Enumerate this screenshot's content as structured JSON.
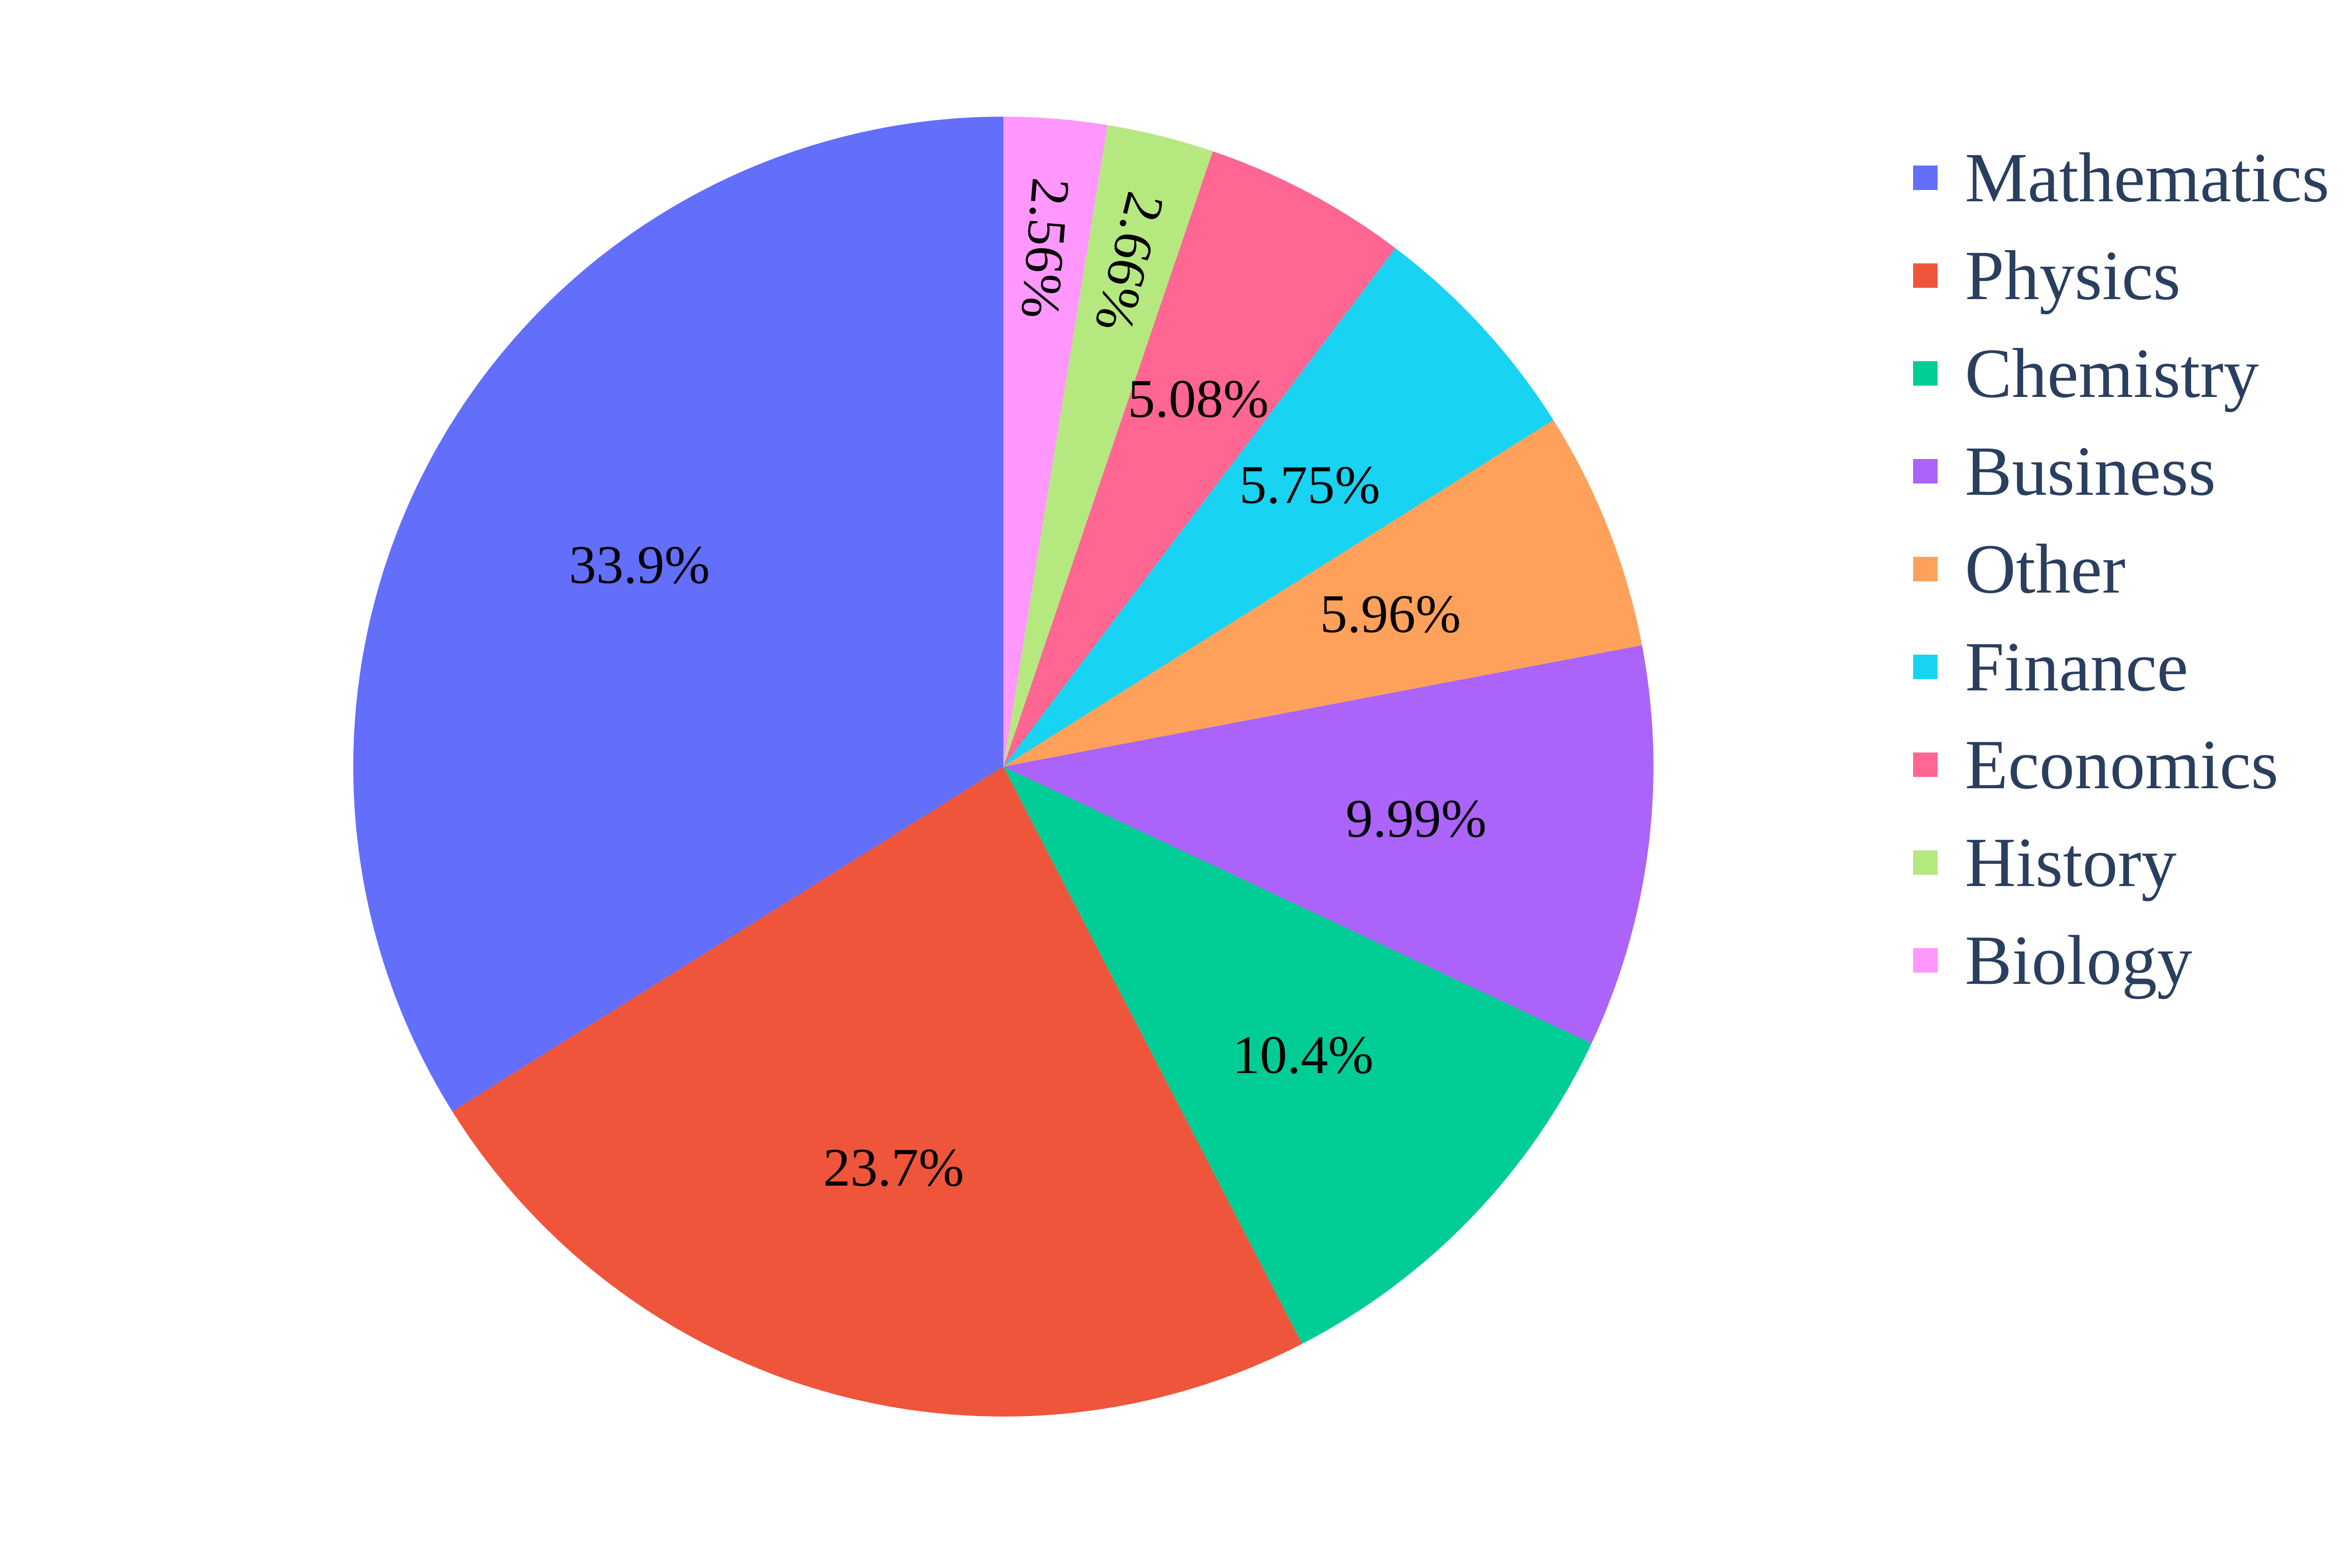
{
  "chart_data": {
    "type": "pie",
    "categories": [
      "Mathematics",
      "Physics",
      "Chemistry",
      "Business",
      "Other",
      "Finance",
      "Economics",
      "History",
      "Biology"
    ],
    "values": [
      33.9,
      23.7,
      10.4,
      9.99,
      5.96,
      5.75,
      5.08,
      2.66,
      2.56
    ],
    "labels": [
      "33.9%",
      "23.7%",
      "10.4%",
      "9.99%",
      "5.96%",
      "5.75%",
      "5.08%",
      "2.66%",
      "2.56%"
    ],
    "colors": [
      "#636efa",
      "#ef553b",
      "#00cc96",
      "#ab63fa",
      "#ffa15a",
      "#19d3f3",
      "#ff6692",
      "#b6e880",
      "#ff97ff"
    ],
    "direction": "counterclockwise",
    "start": "12 o'clock",
    "legend_position": "top-right",
    "legend": [
      "Mathematics",
      "Physics",
      "Chemistry",
      "Business",
      "Other",
      "Finance",
      "Economics",
      "History",
      "Biology"
    ]
  }
}
